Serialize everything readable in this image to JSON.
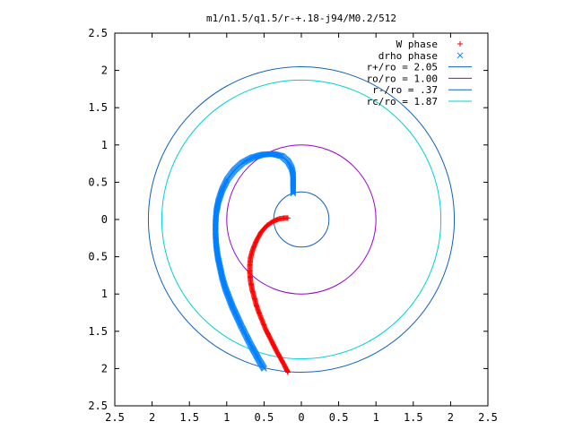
{
  "chart_data": {
    "type": "scatter",
    "title": "m1/n1.5/q1.5/r-+.18-j94/M0.2/512",
    "xlim": [
      -2.5,
      2.5
    ],
    "ylim": [
      -2.5,
      2.5
    ],
    "x_ticks": [
      -2.5,
      -2,
      -1.5,
      -1,
      -0.5,
      0,
      0.5,
      1,
      1.5,
      2,
      2.5
    ],
    "y_ticks": [
      -2.5,
      -2,
      -1.5,
      -1,
      -0.5,
      0,
      0.5,
      1,
      1.5,
      2,
      2.5
    ],
    "x_tick_labels": [
      "2.5",
      "2",
      "1.5",
      "1",
      "0.5",
      "0",
      "0.5",
      "1",
      "1.5",
      "2",
      "2.5"
    ],
    "y_tick_labels": [
      "2.5",
      "2",
      "1.5",
      "1",
      "0.5",
      "0",
      "0.5",
      "1",
      "1.5",
      "2",
      "2.5"
    ],
    "grid": false,
    "legend_position": "top-right",
    "series": [
      {
        "name": "W phase",
        "kind": "points",
        "marker": "plus",
        "color": "#ff0000",
        "points": [
          [
            -0.18,
            -2.05
          ],
          [
            -0.23,
            -1.95
          ],
          [
            -0.28,
            -1.86
          ],
          [
            -0.33,
            -1.77
          ],
          [
            -0.38,
            -1.67
          ],
          [
            -0.43,
            -1.57
          ],
          [
            -0.48,
            -1.47
          ],
          [
            -0.52,
            -1.37
          ],
          [
            -0.56,
            -1.27
          ],
          [
            -0.6,
            -1.16
          ],
          [
            -0.63,
            -1.05
          ],
          [
            -0.66,
            -0.94
          ],
          [
            -0.68,
            -0.83
          ],
          [
            -0.69,
            -0.72
          ],
          [
            -0.69,
            -0.62
          ],
          [
            -0.68,
            -0.51
          ],
          [
            -0.65,
            -0.4
          ],
          [
            -0.6,
            -0.28
          ],
          [
            -0.54,
            -0.17
          ],
          [
            -0.46,
            -0.08
          ],
          [
            -0.37,
            -0.02
          ],
          [
            -0.29,
            0.01
          ],
          [
            -0.22,
            0.02
          ],
          [
            -0.18,
            0.02
          ]
        ]
      },
      {
        "name": "drho phase",
        "kind": "points",
        "marker": "cross",
        "color": "#0080ff",
        "points": [
          [
            -0.5,
            -2.0
          ],
          [
            -0.56,
            -1.9
          ],
          [
            -0.62,
            -1.79
          ],
          [
            -0.68,
            -1.68
          ],
          [
            -0.74,
            -1.56
          ],
          [
            -0.8,
            -1.44
          ],
          [
            -0.86,
            -1.31
          ],
          [
            -0.92,
            -1.18
          ],
          [
            -0.97,
            -1.05
          ],
          [
            -1.02,
            -0.92
          ],
          [
            -1.06,
            -0.78
          ],
          [
            -1.09,
            -0.64
          ],
          [
            -1.12,
            -0.5
          ],
          [
            -1.14,
            -0.35
          ],
          [
            -1.15,
            -0.2
          ],
          [
            -1.15,
            -0.05
          ],
          [
            -1.14,
            0.1
          ],
          [
            -1.11,
            0.25
          ],
          [
            -1.06,
            0.4
          ],
          [
            -0.99,
            0.54
          ],
          [
            -0.9,
            0.66
          ],
          [
            -0.79,
            0.76
          ],
          [
            -0.66,
            0.83
          ],
          [
            -0.52,
            0.87
          ],
          [
            -0.38,
            0.88
          ],
          [
            -0.26,
            0.85
          ],
          [
            -0.18,
            0.78
          ],
          [
            -0.13,
            0.69
          ],
          [
            -0.11,
            0.6
          ],
          [
            -0.11,
            0.5
          ],
          [
            -0.11,
            0.4
          ],
          [
            -0.11,
            0.35
          ]
        ]
      },
      {
        "name": "r+/ro = 2.05",
        "kind": "circle",
        "radius": 2.05,
        "color": "#1060c0"
      },
      {
        "name": "ro/ro = 1.00",
        "kind": "circle",
        "radius": 1.0,
        "color": "#9400d3"
      },
      {
        "name": "r-/ro = .37",
        "kind": "circle",
        "radius": 0.37,
        "color": "#1060c0"
      },
      {
        "name": "rc/ro = 1.87",
        "kind": "circle",
        "radius": 1.87,
        "color": "#00d0d0"
      }
    ]
  }
}
